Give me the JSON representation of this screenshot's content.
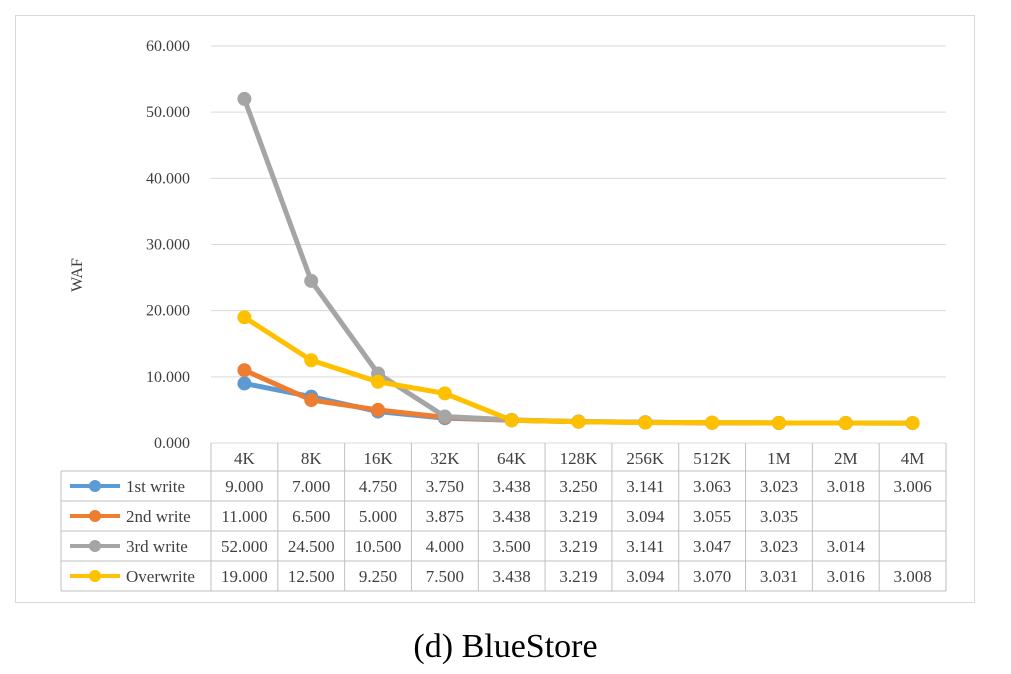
{
  "caption": "(d) BlueStore",
  "chart_data": {
    "type": "line",
    "title": "",
    "xlabel": "",
    "ylabel": "WAF",
    "ylim": [
      0,
      60
    ],
    "yticks": [
      "0.000",
      "10.000",
      "20.000",
      "30.000",
      "40.000",
      "50.000",
      "60.000"
    ],
    "grid": true,
    "legend": "data-table",
    "categories": [
      "4K",
      "8K",
      "16K",
      "32K",
      "64K",
      "128K",
      "256K",
      "512K",
      "1M",
      "2M",
      "4M"
    ],
    "series": [
      {
        "name": "1st write",
        "color": "#5b9bd5",
        "values": [
          9.0,
          7.0,
          4.75,
          3.75,
          3.438,
          3.25,
          3.141,
          3.063,
          3.023,
          3.018,
          3.006
        ],
        "labels": [
          "9.000",
          "7.000",
          "4.750",
          "3.750",
          "3.438",
          "3.250",
          "3.141",
          "3.063",
          "3.023",
          "3.018",
          "3.006"
        ]
      },
      {
        "name": "2nd write",
        "color": "#ed7d31",
        "values": [
          11.0,
          6.5,
          5.0,
          3.875,
          3.438,
          3.219,
          3.094,
          3.055,
          3.035,
          null,
          null
        ],
        "labels": [
          "11.000",
          "6.500",
          "5.000",
          "3.875",
          "3.438",
          "3.219",
          "3.094",
          "3.055",
          "3.035",
          "",
          ""
        ]
      },
      {
        "name": "3rd write",
        "color": "#a5a5a5",
        "values": [
          52.0,
          24.5,
          10.5,
          4.0,
          3.5,
          3.219,
          3.141,
          3.047,
          3.023,
          3.014,
          null
        ],
        "labels": [
          "52.000",
          "24.500",
          "10.500",
          "4.000",
          "3.500",
          "3.219",
          "3.141",
          "3.047",
          "3.023",
          "3.014",
          ""
        ]
      },
      {
        "name": "Overwrite",
        "color": "#ffc000",
        "values": [
          19.0,
          12.5,
          9.25,
          7.5,
          3.438,
          3.219,
          3.094,
          3.07,
          3.031,
          3.016,
          3.008
        ],
        "labels": [
          "19.000",
          "12.500",
          "9.250",
          "7.500",
          "3.438",
          "3.219",
          "3.094",
          "3.070",
          "3.031",
          "3.016",
          "3.008"
        ]
      }
    ]
  }
}
